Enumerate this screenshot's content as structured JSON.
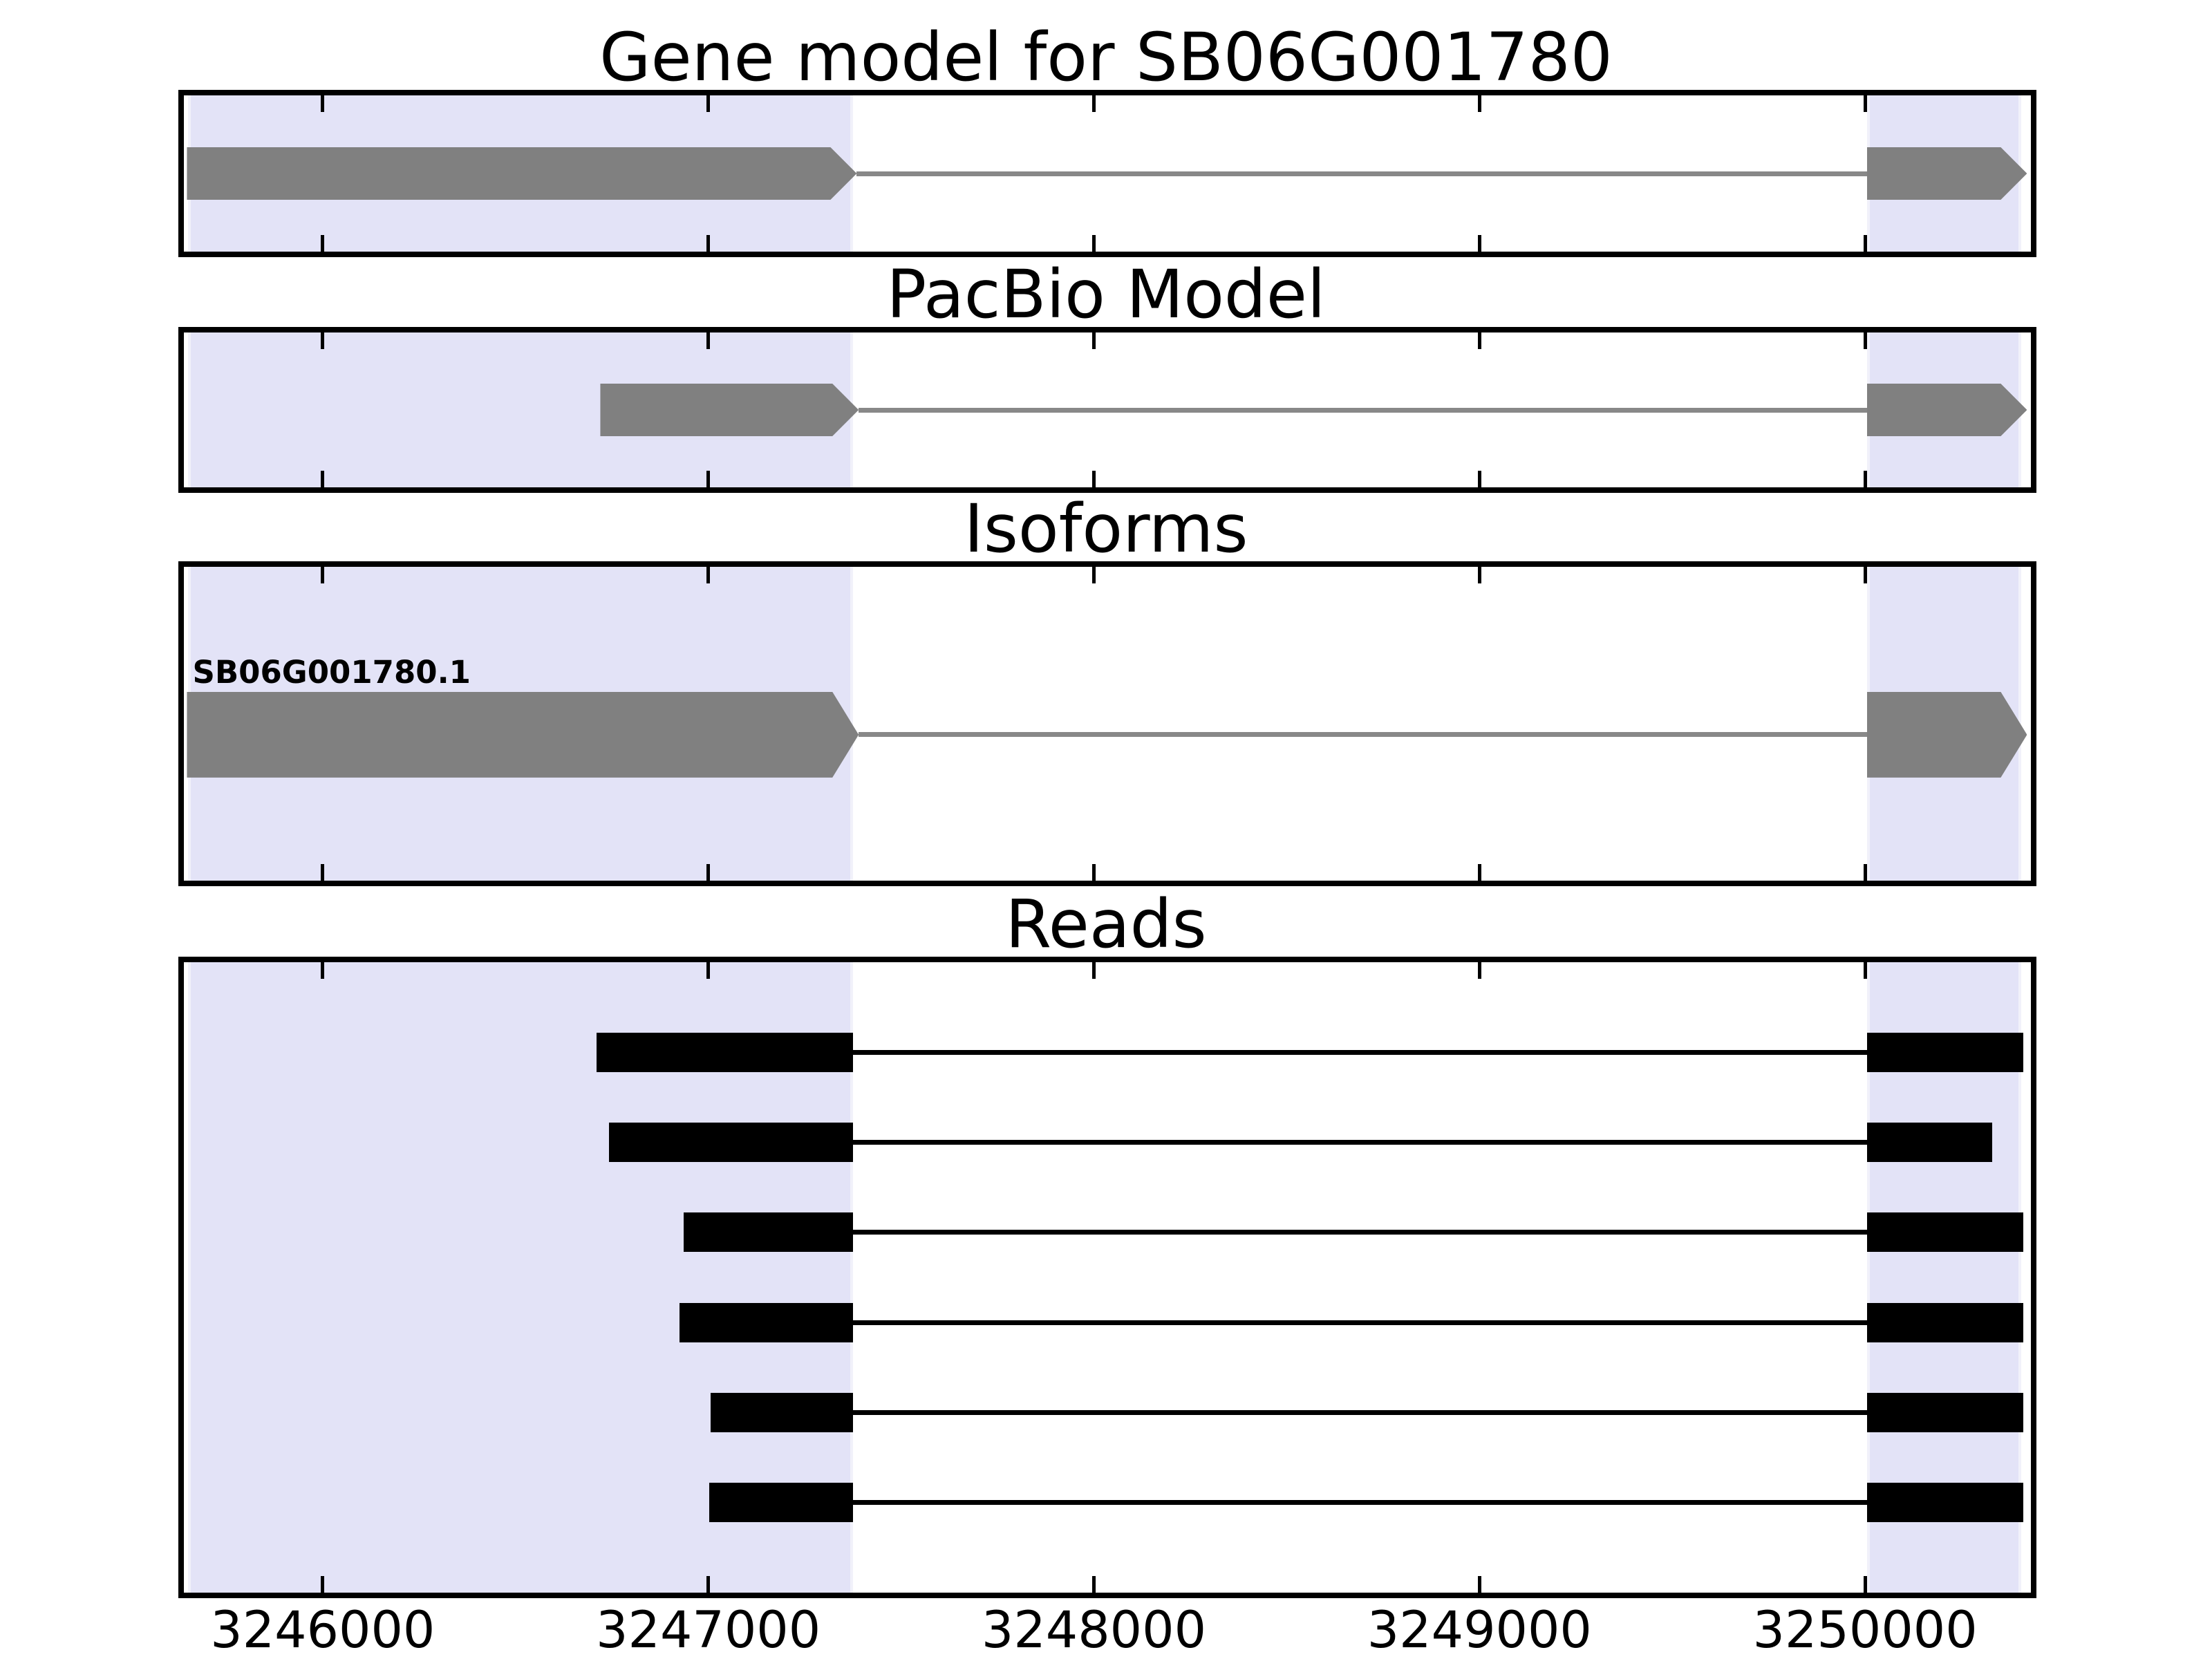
{
  "colors": {
    "background": "#ffffff",
    "highlight": "#e3e3f7",
    "highlight_edge": "#f1f1fa",
    "model_fill": "#808080",
    "model_intron_line": "#888888",
    "read_fill": "#000000",
    "read_connector_line": "#000000",
    "axis": "#000000",
    "text": "#000000"
  },
  "chart_data": {
    "type": "gene-model-tracks",
    "x_axis": {
      "min": 3245640,
      "max": 3250430,
      "ticks": [
        3246000,
        3247000,
        3248000,
        3249000,
        3250000
      ],
      "tick_labels": [
        "3246000",
        "3247000",
        "3248000",
        "3249000",
        "3250000"
      ],
      "tick_style": "inward-top-and-bottom",
      "grid": false
    },
    "highlight_regions": [
      {
        "name": "left-exon-region",
        "start": 3245650,
        "end": 3247375
      },
      {
        "name": "right-exon-region",
        "start": 3250005,
        "end": 3250405
      }
    ],
    "panels": [
      {
        "id": "panel-gene",
        "title": "Gene model for SB06G001780",
        "kind": "transcripts",
        "transcripts": [
          {
            "label": "",
            "strand": "+",
            "exons": [
              {
                "start": 3245648,
                "end": 3247385
              },
              {
                "start": 3250005,
                "end": 3250420
              }
            ]
          }
        ]
      },
      {
        "id": "panel-pacbio",
        "title": "PacBio Model",
        "kind": "transcripts",
        "transcripts": [
          {
            "label": "",
            "strand": "+",
            "exons": [
              {
                "start": 3246720,
                "end": 3247390
              },
              {
                "start": 3250005,
                "end": 3250420
              }
            ]
          }
        ]
      },
      {
        "id": "panel-isoforms",
        "title": "Isoforms",
        "kind": "transcripts",
        "transcripts": [
          {
            "label": "SB06G001780.1",
            "strand": "+",
            "exons": [
              {
                "start": 3245648,
                "end": 3247390
              },
              {
                "start": 3250005,
                "end": 3250420
              }
            ]
          }
        ]
      },
      {
        "id": "panel-reads",
        "title": "Reads",
        "kind": "reads",
        "reads": [
          {
            "blocks": [
              {
                "start": 3246711,
                "end": 3247375
              },
              {
                "start": 3250005,
                "end": 3250410
              }
            ]
          },
          {
            "blocks": [
              {
                "start": 3246743,
                "end": 3247375
              },
              {
                "start": 3250005,
                "end": 3250330
              }
            ]
          },
          {
            "blocks": [
              {
                "start": 3246936,
                "end": 3247375
              },
              {
                "start": 3250005,
                "end": 3250410
              }
            ]
          },
          {
            "blocks": [
              {
                "start": 3246925,
                "end": 3247375
              },
              {
                "start": 3250005,
                "end": 3250410
              }
            ]
          },
          {
            "blocks": [
              {
                "start": 3247006,
                "end": 3247375
              },
              {
                "start": 3250005,
                "end": 3250410
              }
            ]
          },
          {
            "blocks": [
              {
                "start": 3247002,
                "end": 3247375
              },
              {
                "start": 3250005,
                "end": 3250410
              }
            ]
          }
        ]
      }
    ]
  }
}
